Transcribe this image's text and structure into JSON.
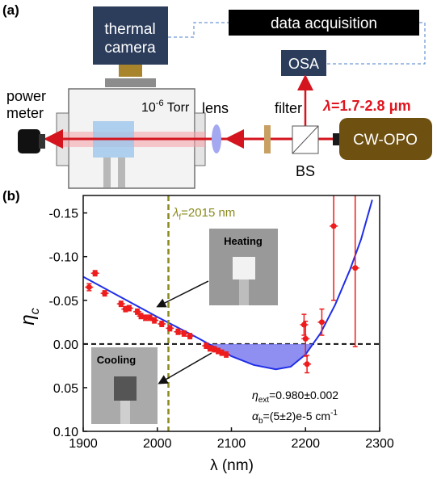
{
  "diagram": {
    "panel_label": "(a)",
    "camera": [
      "thermal",
      "camera"
    ],
    "daq": "data acquisition",
    "osa": "OSA",
    "wavelength": {
      "symbol": "λ",
      "text": "=1.7-2.8 μm"
    },
    "power_meter": [
      "power",
      "meter"
    ],
    "pressure": {
      "base": "10",
      "exp": "-6",
      "unit": " Torr"
    },
    "lens": "lens",
    "filter": "filter",
    "bs": "BS",
    "source": "CW-OPO"
  },
  "chart_data": {
    "type": "scatter",
    "panel_label": "(b)",
    "xlabel": "λ (nm)",
    "ylabel": {
      "symbol": "η",
      "sub": "c"
    },
    "xlim": [
      1900,
      2300
    ],
    "ylim": [
      0.1,
      -0.17
    ],
    "xticks": [
      1900,
      2000,
      2100,
      2200,
      2300
    ],
    "yticks": [
      -0.15,
      {
        "value": -0.1,
        "label": "-0.10"
      },
      -0.05,
      {
        "value": 0,
        "label": "0.00"
      },
      0.05,
      {
        "value": 0.1,
        "label": "0.10"
      }
    ],
    "zero_line": true,
    "lambda_f": {
      "value": 2015,
      "symbol": "λ",
      "sub": "f",
      "label": "=2015 nm",
      "color": "#8a8a1e"
    },
    "series": [
      {
        "style": "points",
        "color": "#ee1c1c",
        "x": [
          1908,
          1916,
          1929,
          1951,
          1957,
          1962,
          1973,
          1978,
          1984,
          1990,
          1996,
          2006,
          2017,
          2028,
          2036,
          2044,
          2066,
          2071,
          2077,
          2082,
          2087,
          2093,
          2198,
          2200,
          2202,
          2222,
          2238,
          2267
        ],
        "values": [
          -0.065,
          -0.081,
          -0.058,
          -0.046,
          -0.04,
          -0.041,
          -0.037,
          -0.032,
          -0.03,
          -0.03,
          -0.027,
          -0.023,
          -0.018,
          -0.014,
          -0.012,
          -0.009,
          0.002,
          0.005,
          0.006,
          0.008,
          0.01,
          0.012,
          -0.022,
          -0.006,
          0.023,
          -0.025,
          -0.135,
          -0.087
        ],
        "errors": [
          0.004,
          0.003,
          0.003,
          0.003,
          0.003,
          0.003,
          0.003,
          0.003,
          0.003,
          0.003,
          0.003,
          0.003,
          0.003,
          0.003,
          0.003,
          0.003,
          0.003,
          0.003,
          0.003,
          0.003,
          0.003,
          0.003,
          0.012,
          0.02,
          0.01,
          0.015,
          0.085,
          0.09
        ]
      },
      {
        "style": "line",
        "color": "#1f2ee8",
        "fill": "#7b7bf0",
        "x": [
          1900,
          1950,
          2000,
          2050,
          2100,
          2130,
          2160,
          2180,
          2200,
          2220,
          2240,
          2260,
          2275,
          2290
        ],
        "values": [
          -0.077,
          -0.054,
          -0.031,
          -0.009,
          0.014,
          0.024,
          0.029,
          0.026,
          0.012,
          -0.012,
          -0.045,
          -0.085,
          -0.12,
          -0.165
        ]
      }
    ],
    "insets": [
      "Heating",
      "Cooling"
    ],
    "annotations": [
      {
        "symbol": "η",
        "sub": "ext",
        "text": "=0.980±0.002"
      },
      {
        "symbol": "α",
        "sub": "b",
        "text": "=(5±2)e-5 cm",
        "sup": "-1"
      }
    ]
  }
}
